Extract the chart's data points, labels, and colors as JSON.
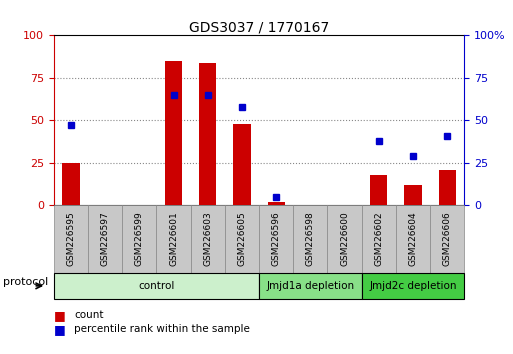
{
  "title": "GDS3037 / 1770167",
  "samples": [
    "GSM226595",
    "GSM226597",
    "GSM226599",
    "GSM226601",
    "GSM226603",
    "GSM226605",
    "GSM226596",
    "GSM226598",
    "GSM226600",
    "GSM226602",
    "GSM226604",
    "GSM226606"
  ],
  "bar_values": [
    25,
    0,
    0,
    85,
    84,
    48,
    2,
    0,
    0,
    18,
    12,
    21
  ],
  "dot_values": [
    47,
    null,
    null,
    65,
    65,
    58,
    5,
    null,
    null,
    38,
    29,
    41
  ],
  "groups": [
    {
      "label": "control",
      "start": 0,
      "end": 5,
      "color": "#ccf0cc",
      "span": 6
    },
    {
      "label": "Jmjd1a depletion",
      "start": 6,
      "end": 8,
      "color": "#88e088",
      "span": 3
    },
    {
      "label": "Jmjd2c depletion",
      "start": 9,
      "end": 11,
      "color": "#44cc44",
      "span": 3
    }
  ],
  "bar_color": "#cc0000",
  "dot_color": "#0000cc",
  "ylim_left": [
    0,
    100
  ],
  "ylim_right": [
    0,
    100
  ],
  "yticks": [
    0,
    25,
    50,
    75,
    100
  ],
  "grid_color": "#888888",
  "bar_width": 0.5,
  "xlabel_fontsize": 6.5,
  "title_fontsize": 10,
  "legend_labels": [
    "count",
    "percentile rank within the sample"
  ],
  "protocol_label": "protocol",
  "right_ytick_suffix": "%",
  "sample_box_color": "#c8c8c8",
  "sample_box_edge": "#888888"
}
